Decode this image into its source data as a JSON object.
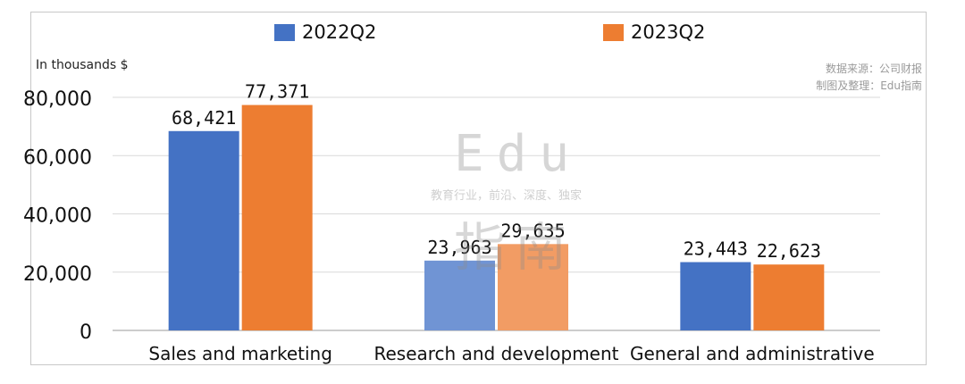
{
  "chart_data": {
    "type": "bar",
    "categories": [
      "Sales and marketing",
      "Research and development",
      "General and administrative"
    ],
    "series": [
      {
        "name": "2022Q2",
        "values": [
          68421,
          23963,
          23443
        ],
        "labels": [
          "68,421",
          "23,963",
          "23,443"
        ]
      },
      {
        "name": "2023Q2",
        "values": [
          77371,
          29635,
          22623
        ],
        "labels": [
          "77,371",
          "29,635",
          "22,623"
        ]
      }
    ],
    "ylim": [
      0,
      80000
    ],
    "yticks": [
      0,
      20000,
      40000,
      60000,
      80000
    ],
    "ytick_labels": [
      "0",
      "20,000",
      "40,000",
      "60,000",
      "80,000"
    ],
    "grid": true,
    "legend_position": "top",
    "colors": [
      "#4472c4",
      "#ed7d31"
    ],
    "highlight_colors": [
      "#7094d4",
      "#f29c64"
    ],
    "ylabel": "In thousands $"
  },
  "source": {
    "line1": "数据来源：公司财报",
    "line2": "制图及整理：Edu指南"
  },
  "watermark": {
    "logo_text": "Edu",
    "tagline": "教育行业，前沿、深度、独家",
    "brand": "指南"
  }
}
